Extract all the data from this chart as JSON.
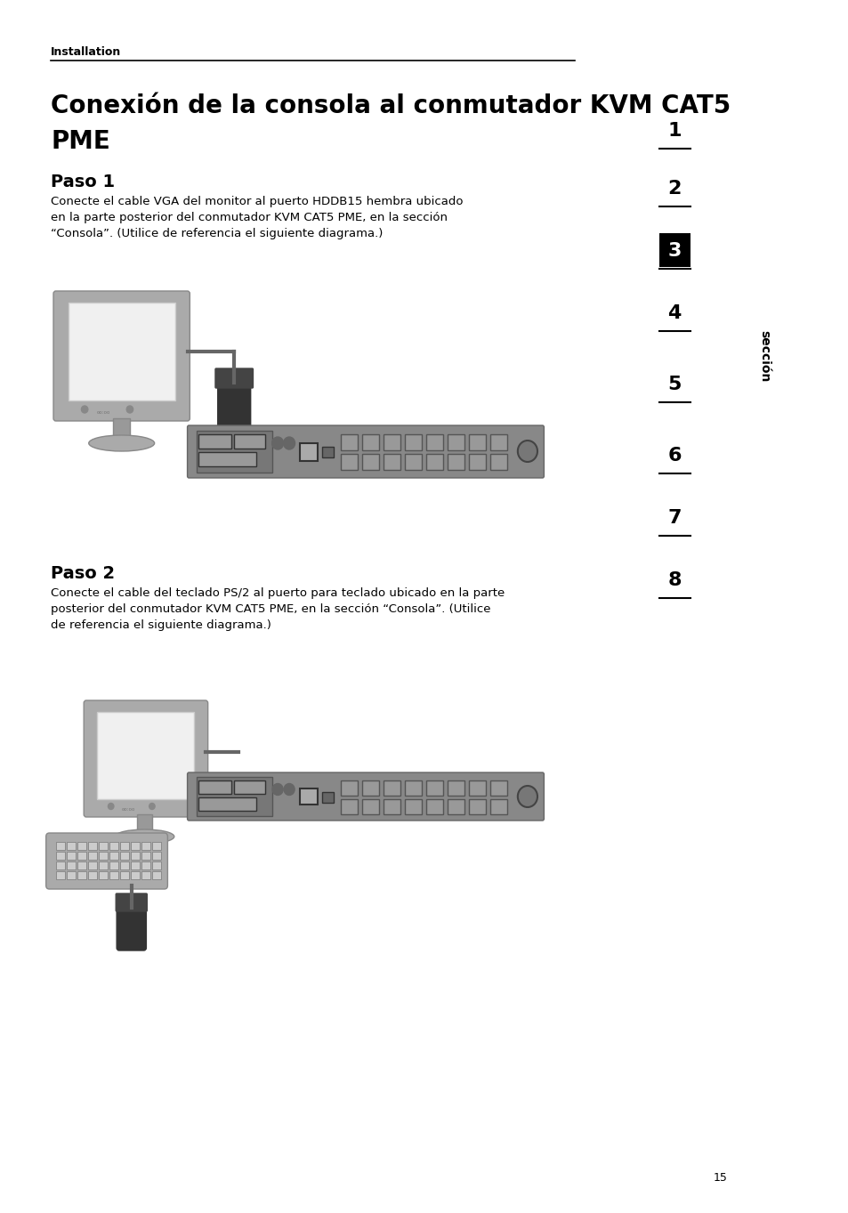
{
  "bg_color": "#ffffff",
  "header_text": "Installation",
  "title_line1": "Conexión de la consola al conmutador KVM CAT5",
  "title_line2": "PME",
  "step1_title": "Paso 1",
  "step1_body": "Conecte el cable VGA del monitor al puerto HDDB15 hembra ubicado\nen la parte posterior del conmutador KVM CAT5 PME, en la sección\n“Consola”. (Utilice de referencia el siguiente diagrama.)",
  "step2_title": "Paso 2",
  "step2_body": "Conecte el cable del teclado PS/2 al puerto para teclado ubicado en la parte\nposterior del conmutador KVM CAT5 PME, en la sección “Consola”. (Utilice\nde referencia el siguiente diagrama.)",
  "page_number": "15",
  "section_numbers": [
    "1",
    "2",
    "3",
    "4",
    "5",
    "6",
    "7",
    "8"
  ],
  "active_section": "3",
  "seccion_label": "sección"
}
